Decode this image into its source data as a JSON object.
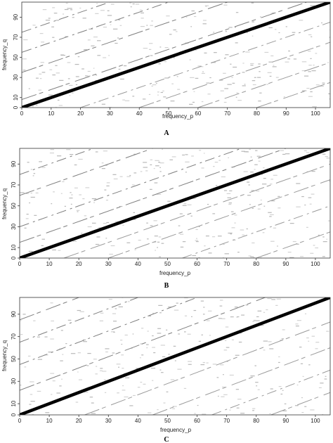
{
  "chart_data": [
    {
      "type": "heatmap",
      "panel": "A",
      "xlabel": "frequency_p",
      "ylabel": "frequency_q",
      "xlim": [
        0,
        105
      ],
      "ylim": [
        0,
        105
      ],
      "xticks": [
        0,
        10,
        20,
        30,
        40,
        50,
        60,
        70,
        80,
        90,
        100
      ],
      "yticks": [
        0,
        10,
        30,
        50,
        70,
        90
      ],
      "diagonal": {
        "from": [
          0,
          0
        ],
        "to": [
          105,
          105
        ]
      },
      "secondary_lines": [
        {
          "from": [
            0,
            55
          ],
          "to": [
            50,
            105
          ]
        },
        {
          "from": [
            60,
            0
          ],
          "to": [
            105,
            45
          ]
        },
        {
          "from": [
            0,
            8
          ],
          "to": [
            97,
            105
          ]
        },
        {
          "from": [
            20,
            0
          ],
          "to": [
            105,
            85
          ]
        },
        {
          "from": [
            0,
            35
          ],
          "to": [
            70,
            105
          ]
        },
        {
          "from": [
            40,
            0
          ],
          "to": [
            105,
            65
          ]
        },
        {
          "from": [
            0,
            75
          ],
          "to": [
            30,
            105
          ]
        },
        {
          "from": [
            80,
            0
          ],
          "to": [
            105,
            25
          ]
        }
      ]
    },
    {
      "type": "heatmap",
      "panel": "B",
      "xlabel": "frequency_p",
      "ylabel": "frequency_q",
      "xlim": [
        0,
        105
      ],
      "ylim": [
        0,
        105
      ],
      "xticks": [
        0,
        10,
        20,
        30,
        40,
        50,
        60,
        70,
        80,
        90,
        100
      ],
      "yticks": [
        0,
        10,
        30,
        50,
        70,
        90
      ],
      "diagonal": {
        "from": [
          0,
          0
        ],
        "to": [
          105,
          105
        ]
      },
      "secondary_lines": [
        {
          "from": [
            0,
            30
          ],
          "to": [
            75,
            105
          ]
        },
        {
          "from": [
            30,
            0
          ],
          "to": [
            105,
            75
          ]
        },
        {
          "from": [
            0,
            60
          ],
          "to": [
            45,
            105
          ]
        },
        {
          "from": [
            55,
            0
          ],
          "to": [
            105,
            50
          ]
        },
        {
          "from": [
            0,
            15
          ],
          "to": [
            90,
            105
          ]
        },
        {
          "from": [
            15,
            0
          ],
          "to": [
            105,
            90
          ]
        },
        {
          "from": [
            0,
            80
          ],
          "to": [
            25,
            105
          ]
        },
        {
          "from": [
            80,
            0
          ],
          "to": [
            105,
            25
          ]
        }
      ]
    },
    {
      "type": "heatmap",
      "panel": "C",
      "xlabel": "frequency_p",
      "ylabel": "frequency_q",
      "xlim": [
        0,
        105
      ],
      "ylim": [
        0,
        105
      ],
      "xticks": [
        0,
        10,
        20,
        30,
        40,
        50,
        60,
        70,
        80,
        90,
        100
      ],
      "yticks": [
        0,
        10,
        30,
        50,
        70,
        90
      ],
      "diagonal": {
        "from": [
          0,
          0
        ],
        "to": [
          105,
          105
        ]
      },
      "secondary_lines": [
        {
          "from": [
            0,
            45
          ],
          "to": [
            60,
            105
          ]
        },
        {
          "from": [
            45,
            0
          ],
          "to": [
            105,
            60
          ]
        },
        {
          "from": [
            0,
            85
          ],
          "to": [
            20,
            105
          ]
        },
        {
          "from": [
            65,
            0
          ],
          "to": [
            105,
            40
          ]
        },
        {
          "from": [
            0,
            22
          ],
          "to": [
            83,
            105
          ]
        },
        {
          "from": [
            22,
            0
          ],
          "to": [
            105,
            83
          ]
        },
        {
          "from": [
            0,
            65
          ],
          "to": [
            40,
            105
          ]
        },
        {
          "from": [
            85,
            0
          ],
          "to": [
            105,
            20
          ]
        }
      ]
    }
  ]
}
